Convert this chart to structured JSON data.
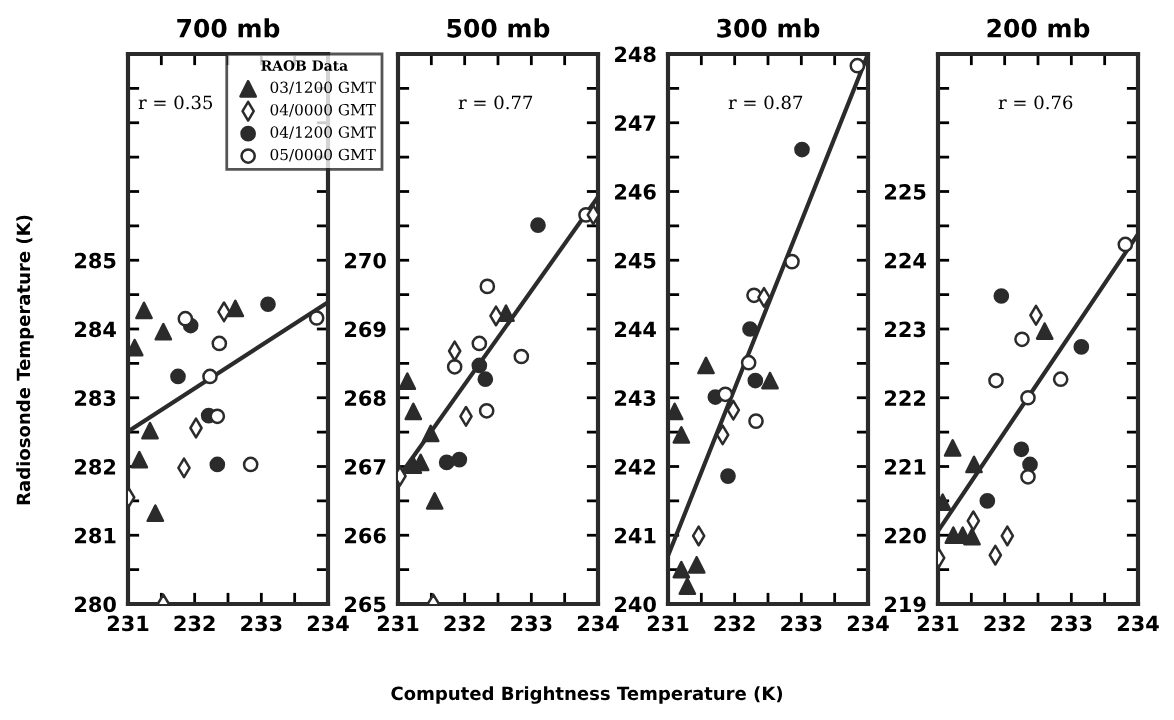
{
  "chart_data": [
    {
      "type": "scatter",
      "title": "700 mb",
      "ylabel": "Radiosonde Temperature (K)",
      "xlabel": "Computed Brightness Temperature (K)",
      "legend": "top right",
      "legend_title": "RAOB Data",
      "annotations": [
        "r = 0.35"
      ],
      "xlim": [
        231,
        234
      ],
      "xticks": [
        231,
        {
          "value": 231.5,
          "label": null
        },
        232,
        {
          "value": 232.5,
          "label": null
        },
        233,
        {
          "value": 233.5,
          "label": null
        },
        234
      ],
      "ylim": [
        280,
        288
      ],
      "yticks": [
        280,
        {
          "value": 280.5,
          "label": null
        },
        281,
        {
          "value": 281.5,
          "label": null
        },
        282,
        {
          "value": 282.5,
          "label": null
        },
        283,
        {
          "value": 283.5,
          "label": null
        },
        284,
        {
          "value": 284.5,
          "label": null
        },
        285,
        {
          "value": 285.5,
          "label": null
        },
        {
          "value": 286,
          "label": null
        },
        {
          "value": 286.5,
          "label": null
        },
        {
          "value": 287,
          "label": null
        },
        {
          "value": 287.5,
          "label": null
        },
        {
          "value": 288,
          "label": null
        }
      ],
      "series": [
        {
          "name": "03/1200 GMT",
          "color": "#2b2b2b",
          "marker": "triangle",
          "x": [
            231.1,
            231.24,
            231.53,
            231.33,
            231.17,
            231.41,
            232.61
          ],
          "values": [
            283.73,
            284.27,
            283.96,
            282.52,
            282.1,
            281.32,
            284.3
          ]
        },
        {
          "name": "04/0000 GMT",
          "color": "#ffffff",
          "marker": "diamond",
          "x": [
            231.01,
            231.53,
            231.84,
            232.02,
            232.44
          ],
          "values": [
            281.55,
            280.0,
            281.98,
            282.56,
            284.25
          ]
        },
        {
          "name": "04/1200 GMT",
          "color": "#2b2b2b",
          "marker": "circle",
          "x": [
            231.75,
            231.94,
            232.21,
            232.34,
            233.1
          ],
          "values": [
            283.31,
            284.05,
            282.74,
            282.03,
            284.36
          ]
        },
        {
          "name": "05/0000 GMT",
          "color": "#ffffff",
          "marker": "circle",
          "x": [
            231.86,
            232.37,
            232.23,
            232.34,
            232.84,
            233.83
          ],
          "values": [
            284.15,
            283.79,
            283.31,
            282.73,
            282.03,
            284.16
          ]
        },
        {
          "type": "line",
          "color": "#2b2b2b",
          "x": [
            231,
            234
          ],
          "values": [
            282.51,
            284.39
          ]
        }
      ]
    },
    {
      "type": "scatter",
      "title": "500 mb",
      "annotations": [
        "r = 0.77"
      ],
      "xlim": [
        231,
        234
      ],
      "xticks": [
        231,
        {
          "value": 231.5,
          "label": null
        },
        232,
        {
          "value": 232.5,
          "label": null
        },
        233,
        {
          "value": 233.5,
          "label": null
        },
        234
      ],
      "ylim": [
        265,
        273
      ],
      "yticks": [
        265,
        {
          "value": 265.5,
          "label": null
        },
        266,
        {
          "value": 266.5,
          "label": null
        },
        267,
        {
          "value": 267.5,
          "label": null
        },
        268,
        {
          "value": 268.5,
          "label": null
        },
        269,
        {
          "value": 269.5,
          "label": null
        },
        270,
        {
          "value": 270.5,
          "label": null
        },
        {
          "value": 271,
          "label": null
        },
        {
          "value": 271.5,
          "label": null
        },
        {
          "value": 272,
          "label": null
        },
        {
          "value": 272.5,
          "label": null
        },
        {
          "value": 273,
          "label": null
        }
      ],
      "series": [
        {
          "color": "#2b2b2b",
          "marker": "triangle",
          "x": [
            231.14,
            231.23,
            231.49,
            231.23,
            231.34,
            231.55,
            232.62
          ],
          "values": [
            268.24,
            267.8,
            267.48,
            267.02,
            267.06,
            266.5,
            269.23
          ]
        },
        {
          "color": "#ffffff",
          "marker": "diamond",
          "x": [
            231.03,
            231.53,
            231.85,
            232.02,
            232.47,
            233.93
          ],
          "values": [
            266.86,
            265.0,
            268.68,
            267.73,
            269.19,
            270.66
          ]
        },
        {
          "color": "#2b2b2b",
          "marker": "circle",
          "x": [
            231.73,
            231.92,
            232.22,
            232.31,
            233.1
          ],
          "values": [
            267.06,
            267.1,
            268.47,
            268.27,
            270.51
          ]
        },
        {
          "color": "#ffffff",
          "marker": "circle",
          "x": [
            231.85,
            232.22,
            232.34,
            232.33,
            232.85,
            233.82
          ],
          "values": [
            268.45,
            268.79,
            269.62,
            267.81,
            268.6,
            270.66
          ]
        },
        {
          "type": "line",
          "color": "#2b2b2b",
          "x": [
            231,
            234
          ],
          "values": [
            266.83,
            270.92
          ]
        }
      ]
    },
    {
      "type": "scatter",
      "title": "300 mb",
      "annotations": [
        "r = 0.87"
      ],
      "xlim": [
        231,
        234
      ],
      "xticks": [
        231,
        {
          "value": 231.5,
          "label": null
        },
        232,
        {
          "value": 232.5,
          "label": null
        },
        233,
        {
          "value": 233.5,
          "label": null
        },
        234
      ],
      "ylim": [
        240,
        248
      ],
      "yticks": [
        240,
        {
          "value": 240.5,
          "label": null
        },
        241,
        {
          "value": 241.5,
          "label": null
        },
        242,
        {
          "value": 242.5,
          "label": null
        },
        243,
        {
          "value": 243.5,
          "label": null
        },
        244,
        {
          "value": 244.5,
          "label": null
        },
        245,
        {
          "value": 245.5,
          "label": null
        },
        246,
        {
          "value": 246.5,
          "label": null
        },
        247,
        {
          "value": 247.5,
          "label": null
        },
        248
      ],
      "series": [
        {
          "color": "#2b2b2b",
          "marker": "triangle",
          "x": [
            231.1,
            231.2,
            231.57,
            232.53,
            231.2,
            231.29,
            231.43
          ],
          "values": [
            242.8,
            242.46,
            243.47,
            243.25,
            240.5,
            240.26,
            240.57
          ]
        },
        {
          "color": "#ffffff",
          "marker": "diamond",
          "x": [
            231.46,
            231.82,
            231.98,
            232.44
          ],
          "values": [
            240.99,
            242.46,
            242.82,
            244.46
          ]
        },
        {
          "color": "#2b2b2b",
          "marker": "circle",
          "x": [
            231.71,
            231.9,
            232.23,
            232.31,
            233.01
          ],
          "values": [
            243.01,
            241.86,
            244.0,
            243.25,
            246.61
          ]
        },
        {
          "color": "#ffffff",
          "marker": "circle",
          "x": [
            231.86,
            232.21,
            232.29,
            232.32,
            232.86,
            233.84
          ],
          "values": [
            243.05,
            243.51,
            244.49,
            242.66,
            244.98,
            247.83
          ]
        },
        {
          "type": "line",
          "color": "#2b2b2b",
          "x": [
            231,
            234
          ],
          "values": [
            240.7,
            248.0
          ]
        }
      ]
    },
    {
      "type": "scatter",
      "title": "200 mb",
      "annotations": [
        "r = 0.76"
      ],
      "xlim": [
        231,
        234
      ],
      "xticks": [
        231,
        {
          "value": 231.5,
          "label": null
        },
        232,
        {
          "value": 232.5,
          "label": null
        },
        233,
        {
          "value": 233.5,
          "label": null
        },
        234
      ],
      "ylim": [
        219,
        227
      ],
      "yticks": [
        219,
        {
          "value": 219.5,
          "label": null
        },
        220,
        {
          "value": 220.5,
          "label": null
        },
        221,
        {
          "value": 221.5,
          "label": null
        },
        222,
        {
          "value": 222.5,
          "label": null
        },
        223,
        {
          "value": 223.5,
          "label": null
        },
        224,
        {
          "value": 224.5,
          "label": null
        },
        225,
        {
          "value": 225.5,
          "label": null
        },
        {
          "value": 226,
          "label": null
        },
        {
          "value": 226.5,
          "label": null
        },
        {
          "value": 227,
          "label": null
        }
      ],
      "series": [
        {
          "color": "#2b2b2b",
          "marker": "triangle",
          "x": [
            231.07,
            231.22,
            231.54,
            231.23,
            231.37,
            231.51,
            232.6
          ],
          "values": [
            220.48,
            221.27,
            221.03,
            220.0,
            220.0,
            219.98,
            222.97
          ]
        },
        {
          "color": "#ffffff",
          "marker": "diamond",
          "x": [
            231.01,
            231.53,
            231.86,
            232.04,
            232.47
          ],
          "values": [
            219.67,
            220.21,
            219.71,
            219.99,
            223.2
          ]
        },
        {
          "color": "#2b2b2b",
          "marker": "circle",
          "x": [
            231.74,
            231.95,
            232.25,
            232.38,
            233.15
          ],
          "values": [
            220.5,
            223.48,
            221.25,
            221.03,
            222.74
          ]
        },
        {
          "color": "#ffffff",
          "marker": "circle",
          "x": [
            231.87,
            232.26,
            232.35,
            232.35,
            232.84,
            233.81
          ],
          "values": [
            222.25,
            222.85,
            222.0,
            220.85,
            222.27,
            224.23
          ]
        },
        {
          "type": "line",
          "color": "#2b2b2b",
          "x": [
            231,
            234
          ],
          "values": [
            220.06,
            224.38
          ]
        }
      ]
    }
  ]
}
